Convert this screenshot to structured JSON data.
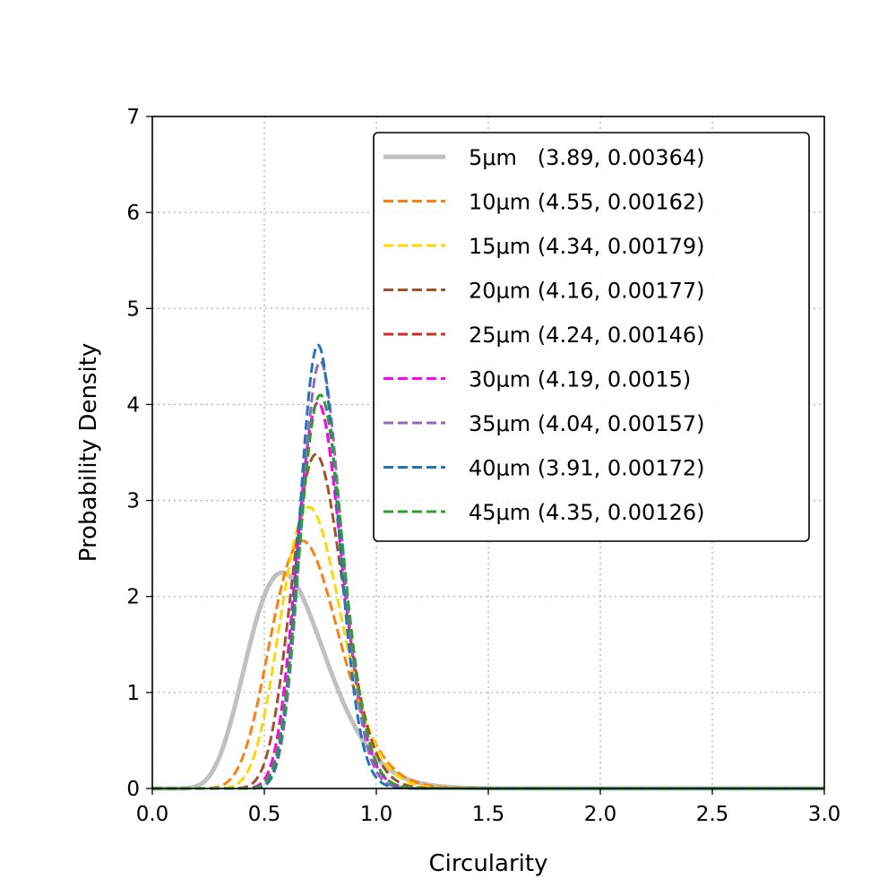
{
  "chart_data": {
    "type": "line",
    "title": "",
    "xlabel": "Circularity",
    "ylabel": "Probability Density",
    "xlim": [
      0,
      3
    ],
    "ylim": [
      0,
      7
    ],
    "grid": true,
    "legend_position": "top-right",
    "xticks": [
      "0.0",
      "0.5",
      "1.0",
      "1.5",
      "2.0",
      "2.5",
      "3.0"
    ],
    "yticks": [
      "0",
      "1",
      "2",
      "3",
      "4",
      "5",
      "6",
      "7"
    ],
    "series": [
      {
        "name": "5μm   (3.89, 0.00364)",
        "color": "#c0c0c0",
        "style": "solid",
        "mode": 0.58,
        "peak": 2.25
      },
      {
        "name": "10μm (4.55, 0.00162)",
        "color": "#ff7f0e",
        "style": "dashed",
        "mode": 0.67,
        "peak": 2.58
      },
      {
        "name": "15μm (4.34, 0.00179)",
        "color": "#ffd700",
        "style": "dashed",
        "mode": 0.7,
        "peak": 2.93
      },
      {
        "name": "20μm (4.16, 0.00177)",
        "color": "#a0522d",
        "style": "dashed",
        "mode": 0.73,
        "peak": 3.48
      },
      {
        "name": "25μm (4.24, 0.00146)",
        "color": "#d62728",
        "style": "dashed",
        "mode": 0.74,
        "peak": 4.02
      },
      {
        "name": "30μm (4.19, 0.0015)",
        "color": "#ff00ff",
        "style": "dashed",
        "mode": 0.74,
        "peak": 4.02
      },
      {
        "name": "35μm (4.04, 0.00157)",
        "color": "#9467bd",
        "style": "dashed",
        "mode": 0.75,
        "peak": 4.45
      },
      {
        "name": "40μm (3.91, 0.00172)",
        "color": "#1f77b4",
        "style": "dashed",
        "mode": 0.74,
        "peak": 4.62
      },
      {
        "name": "45μm (4.35, 0.00126)",
        "color": "#2ca02c",
        "style": "dashed",
        "mode": 0.75,
        "peak": 4.1
      }
    ]
  }
}
